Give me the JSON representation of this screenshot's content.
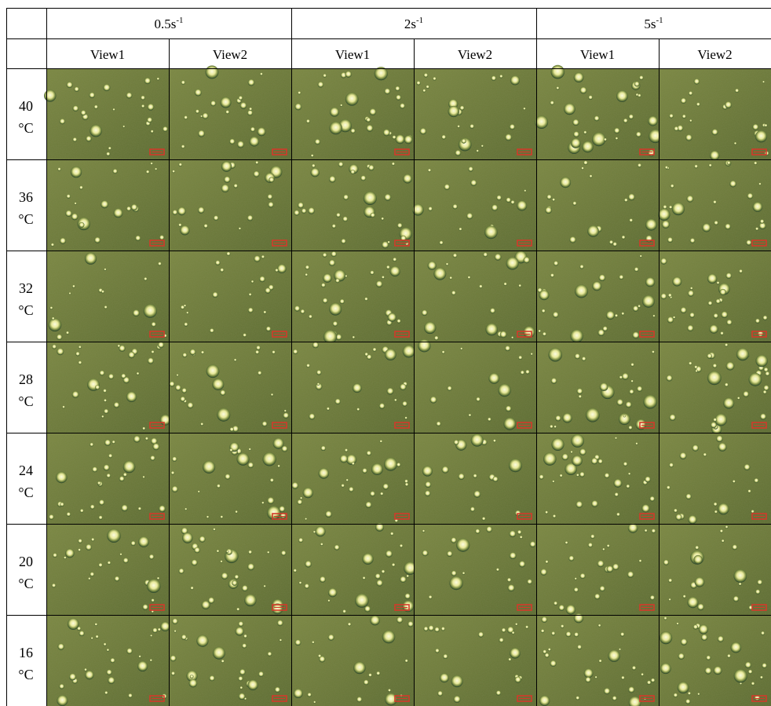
{
  "table": {
    "rate_headers": [
      {
        "base": "0.5s",
        "exp": "-1"
      },
      {
        "base": "2s",
        "exp": "-1"
      },
      {
        "base": "5s",
        "exp": "-1"
      }
    ],
    "view_headers": [
      "View1",
      "View2",
      "View1",
      "View2",
      "View1",
      "View2"
    ],
    "rows": [
      {
        "temp": "40",
        "unit": "°C"
      },
      {
        "temp": "36",
        "unit": "°C"
      },
      {
        "temp": "32",
        "unit": "°C"
      },
      {
        "temp": "28",
        "unit": "°C"
      },
      {
        "temp": "24",
        "unit": "°C"
      },
      {
        "temp": "20",
        "unit": "°C"
      },
      {
        "temp": "16",
        "unit": "°C"
      }
    ]
  },
  "colors": {
    "tile_base": "#6e7a3a",
    "tile_dark": "#4f5f2e",
    "droplet_core": "#f4f3c8",
    "droplet_ring": "#2c4a2a",
    "scale_bar": "#d23a2a",
    "grid_line": "#000000"
  }
}
